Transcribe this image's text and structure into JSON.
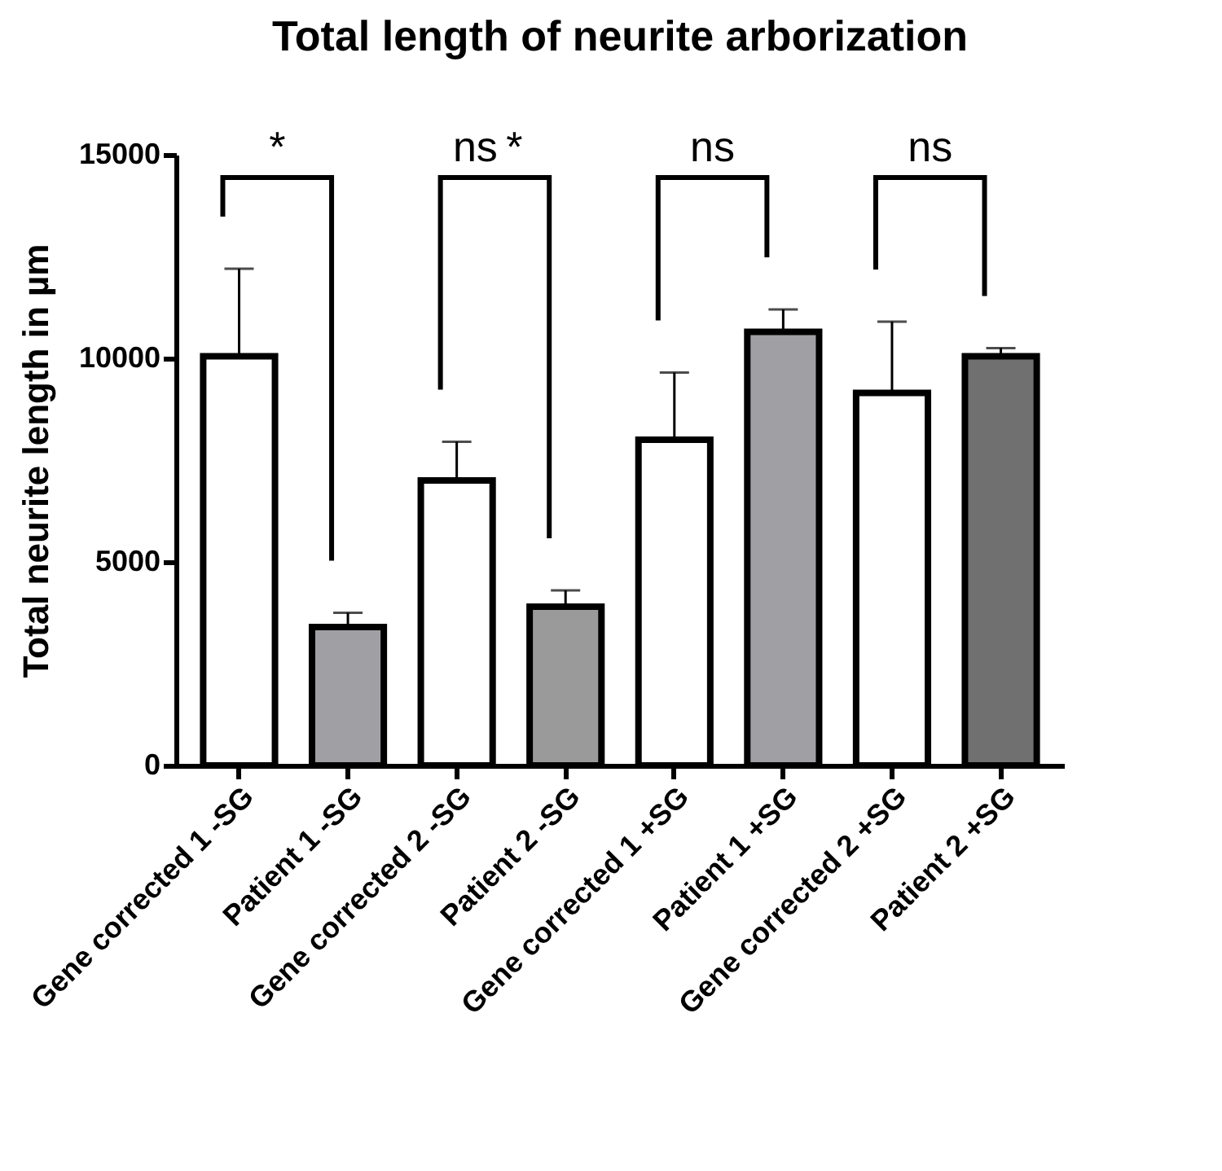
{
  "chart_data": {
    "type": "bar",
    "title": "Total length of neurite arborization",
    "ylabel": "Total neurite length in µm",
    "categories": [
      "Gene corrected 1 -SG",
      "Patient 1 -SG",
      "Gene corrected 2 -SG",
      "Patient 2 -SG",
      "Gene corrected 1 +SG",
      "Patient 1 +SG",
      "Gene corrected 2 +SG",
      "Patient 2 +SG"
    ],
    "values": [
      10050,
      3400,
      7000,
      3900,
      8000,
      10650,
      9150,
      10050
    ],
    "colors": [
      "#ffffff",
      "#a0a0a4",
      "#ffffff",
      "#9a9a9a",
      "#ffffff",
      "#a0a0a4",
      "#ffffff",
      "#707070"
    ],
    "errors": [
      [
        10050,
        12200
      ],
      [
        3400,
        3750
      ],
      [
        7000,
        7950
      ],
      [
        3900,
        4300
      ],
      [
        8000,
        9650
      ],
      [
        10650,
        11200
      ],
      [
        9150,
        10900
      ],
      [
        10050,
        10250
      ]
    ],
    "ylim": [
      0,
      15000
    ],
    "yticks": [
      0,
      5000,
      10000,
      15000
    ],
    "grid": false,
    "annotations": [
      "*",
      "ns",
      "*",
      "ns",
      "ns"
    ]
  }
}
